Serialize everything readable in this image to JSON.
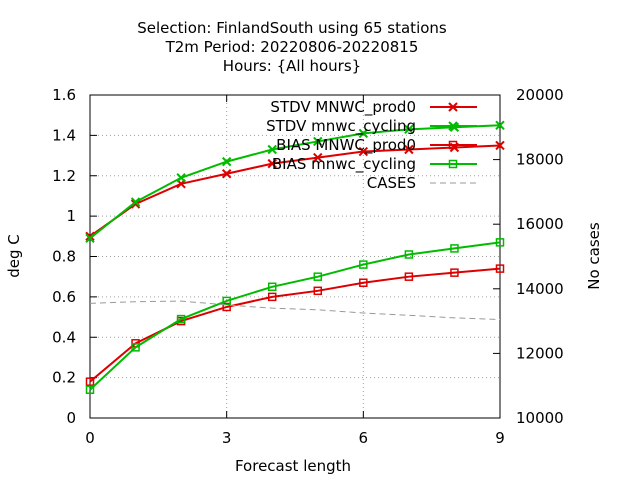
{
  "chart_data": {
    "type": "line",
    "title_lines": [
      "Selection: FinlandSouth using    65 stations",
      "T2m   Period: 20220806-20220815",
      "Hours: {All hours}"
    ],
    "xlabel": "Forecast length",
    "ylabel": "deg C",
    "y2label": "No cases",
    "xlim": [
      0,
      9
    ],
    "ylim": [
      0,
      1.6
    ],
    "y2lim": [
      10000,
      20000
    ],
    "x_ticks": [
      "0",
      "3",
      "6",
      "9"
    ],
    "y_ticks": [
      "0",
      "0.2",
      "0.4",
      "0.6",
      "0.8",
      "1",
      "1.2",
      "1.4",
      "1.6"
    ],
    "y2_ticks": [
      "10000",
      "12000",
      "14000",
      "16000",
      "18000",
      "20000"
    ],
    "grid": true,
    "legend_position": "top-right",
    "x": [
      0,
      1,
      2,
      3,
      4,
      5,
      6,
      7,
      8,
      9
    ],
    "series": [
      {
        "name": "STDV MNWC_prod0",
        "axis": "y",
        "color": "#dd0000",
        "marker": "x",
        "dashed": false,
        "values": [
          0.9,
          1.06,
          1.16,
          1.21,
          1.26,
          1.29,
          1.32,
          1.33,
          1.34,
          1.35
        ]
      },
      {
        "name": "STDV mnwc_cycling",
        "axis": "y",
        "color": "#00bb00",
        "marker": "x",
        "dashed": false,
        "values": [
          0.89,
          1.07,
          1.19,
          1.27,
          1.33,
          1.37,
          1.41,
          1.43,
          1.44,
          1.45
        ]
      },
      {
        "name": "BIAS MNWC_prod0",
        "axis": "y",
        "color": "#dd0000",
        "marker": "square",
        "dashed": false,
        "values": [
          0.18,
          0.37,
          0.48,
          0.55,
          0.6,
          0.63,
          0.67,
          0.7,
          0.72,
          0.74
        ]
      },
      {
        "name": "BIAS mnwc_cycling",
        "axis": "y",
        "color": "#00bb00",
        "marker": "square",
        "dashed": false,
        "values": [
          0.14,
          0.35,
          0.49,
          0.58,
          0.65,
          0.7,
          0.76,
          0.81,
          0.84,
          0.87
        ]
      },
      {
        "name": "CASES",
        "axis": "y2",
        "color": "#999999",
        "marker": "none",
        "dashed": true,
        "values": [
          13550,
          13600,
          13620,
          13500,
          13400,
          13350,
          13250,
          13180,
          13100,
          13050
        ]
      }
    ]
  }
}
